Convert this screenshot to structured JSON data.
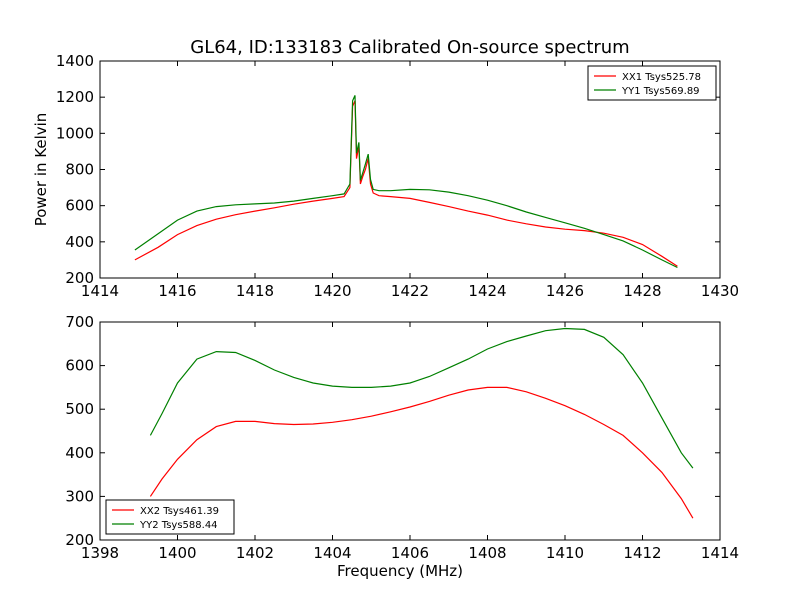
{
  "title": "GL64, ID:133183 Calibrated On-source spectrum",
  "chart_data": [
    {
      "type": "line",
      "xlabel": "",
      "ylabel": "Power in Kelvin",
      "xlim": [
        1414,
        1430
      ],
      "ylim": [
        200,
        1400
      ],
      "xticks": [
        1414,
        1416,
        1418,
        1420,
        1422,
        1424,
        1426,
        1428,
        1430
      ],
      "yticks": [
        200,
        400,
        600,
        800,
        1000,
        1200,
        1400
      ],
      "grid": false,
      "legend_position": "top-right",
      "series": [
        {
          "name": "XX1 Tsys525.78",
          "color": "#ff0000",
          "x": [
            1414.9,
            1415.5,
            1416.0,
            1416.5,
            1417.0,
            1417.5,
            1418.0,
            1418.5,
            1419.0,
            1419.5,
            1420.0,
            1420.3,
            1420.45,
            1420.52,
            1420.58,
            1420.62,
            1420.68,
            1420.72,
            1420.78,
            1420.85,
            1420.92,
            1420.98,
            1421.05,
            1421.2,
            1421.5,
            1422.0,
            1422.5,
            1423.0,
            1423.5,
            1424.0,
            1424.5,
            1425.0,
            1425.5,
            1426.0,
            1426.5,
            1427.0,
            1427.5,
            1428.0,
            1428.5,
            1428.9
          ],
          "y": [
            300,
            370,
            440,
            490,
            525,
            550,
            570,
            588,
            608,
            625,
            640,
            650,
            700,
            1150,
            1180,
            860,
            930,
            720,
            760,
            800,
            860,
            720,
            670,
            655,
            650,
            640,
            618,
            595,
            570,
            548,
            520,
            500,
            482,
            470,
            462,
            448,
            425,
            385,
            320,
            265
          ]
        },
        {
          "name": "YY1 Tsys569.89",
          "color": "#008000",
          "x": [
            1414.9,
            1415.5,
            1416.0,
            1416.5,
            1417.0,
            1417.5,
            1418.0,
            1418.5,
            1419.0,
            1419.5,
            1420.0,
            1420.3,
            1420.45,
            1420.52,
            1420.58,
            1420.62,
            1420.68,
            1420.72,
            1420.78,
            1420.85,
            1420.92,
            1420.98,
            1421.05,
            1421.2,
            1421.5,
            1422.0,
            1422.5,
            1423.0,
            1423.5,
            1424.0,
            1424.5,
            1425.0,
            1425.5,
            1426.0,
            1426.5,
            1427.0,
            1427.5,
            1428.0,
            1428.5,
            1428.9
          ],
          "y": [
            355,
            445,
            520,
            570,
            595,
            605,
            610,
            615,
            625,
            640,
            655,
            665,
            720,
            1180,
            1210,
            890,
            950,
            740,
            780,
            830,
            885,
            745,
            690,
            683,
            683,
            690,
            688,
            675,
            655,
            630,
            600,
            565,
            535,
            505,
            475,
            440,
            405,
            355,
            300,
            258
          ]
        }
      ]
    },
    {
      "type": "line",
      "xlabel": "Frequency (MHz)",
      "ylabel": "",
      "xlim": [
        1398,
        1414
      ],
      "ylim": [
        200,
        700
      ],
      "xticks": [
        1398,
        1400,
        1402,
        1404,
        1406,
        1408,
        1410,
        1412,
        1414
      ],
      "yticks": [
        200,
        300,
        400,
        500,
        600,
        700
      ],
      "grid": false,
      "legend_position": "bottom-left",
      "series": [
        {
          "name": "XX2 Tsys461.39",
          "color": "#ff0000",
          "x": [
            1399.3,
            1399.6,
            1400.0,
            1400.5,
            1401.0,
            1401.5,
            1402.0,
            1402.5,
            1403.0,
            1403.5,
            1404.0,
            1404.5,
            1405.0,
            1405.5,
            1406.0,
            1406.5,
            1407.0,
            1407.5,
            1408.0,
            1408.5,
            1409.0,
            1409.5,
            1410.0,
            1410.5,
            1411.0,
            1411.5,
            1412.0,
            1412.5,
            1413.0,
            1413.3
          ],
          "y": [
            300,
            340,
            385,
            430,
            460,
            472,
            472,
            467,
            465,
            466,
            470,
            476,
            484,
            494,
            505,
            518,
            532,
            544,
            550,
            550,
            540,
            525,
            508,
            488,
            465,
            440,
            400,
            355,
            295,
            250
          ]
        },
        {
          "name": "YY2 Tsys588.44",
          "color": "#008000",
          "x": [
            1399.3,
            1399.6,
            1400.0,
            1400.5,
            1401.0,
            1401.5,
            1402.0,
            1402.5,
            1403.0,
            1403.5,
            1404.0,
            1404.5,
            1405.0,
            1405.5,
            1406.0,
            1406.5,
            1407.0,
            1407.5,
            1408.0,
            1408.5,
            1409.0,
            1409.5,
            1410.0,
            1410.5,
            1411.0,
            1411.5,
            1412.0,
            1412.5,
            1413.0,
            1413.3
          ],
          "y": [
            440,
            490,
            560,
            615,
            632,
            630,
            612,
            590,
            573,
            560,
            553,
            550,
            550,
            553,
            560,
            575,
            595,
            615,
            638,
            655,
            668,
            680,
            685,
            683,
            665,
            625,
            560,
            480,
            400,
            365
          ]
        }
      ]
    }
  ]
}
